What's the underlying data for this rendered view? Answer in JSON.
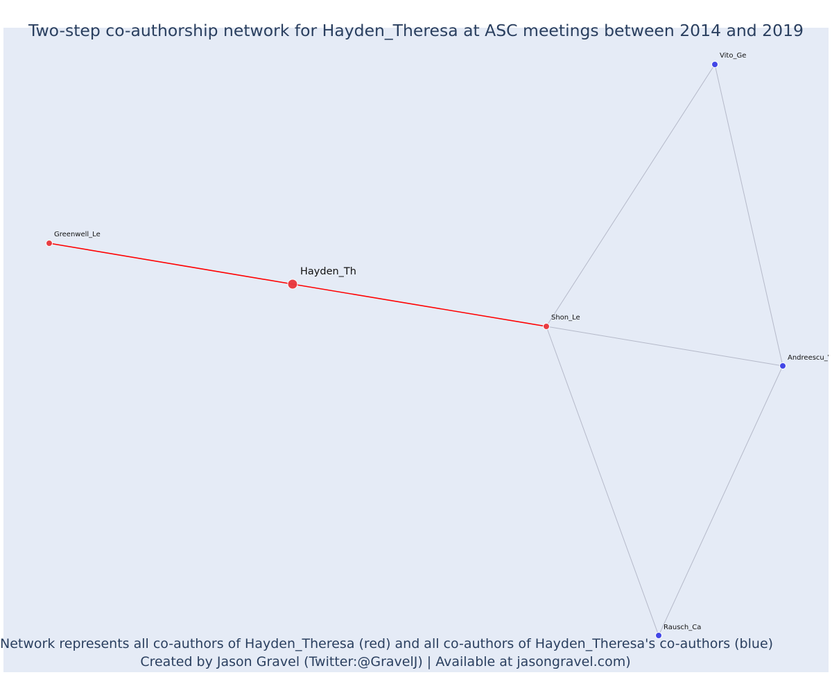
{
  "title": "Two-step co-authorship network for Hayden_Theresa at ASC meetings between 2014 and 2019",
  "footer": {
    "line1": "Network represents all co-authors of Hayden_Theresa (red) and all co-authors of Hayden_Theresa's co-authors (blue)",
    "line2": "Created by Jason Gravel (Twitter:@GravelJ) | Available at jasongravel.com)"
  },
  "colors": {
    "background": "#e5ebf6",
    "direct_coauthor": "#e8363b",
    "second_step_coauthor": "#3a3ee6",
    "direct_edge": "#ff0000",
    "second_step_edge": "#b5b9c9"
  },
  "chart_data": {
    "type": "network",
    "nodes": [
      {
        "id": "Hayden_Th",
        "label": "Hayden_Th",
        "group": "focal"
      },
      {
        "id": "Greenwell_Le",
        "label": "Greenwell_Le",
        "group": "coauthor"
      },
      {
        "id": "Shon_Le",
        "label": "Shon_Le",
        "group": "coauthor"
      },
      {
        "id": "Vito_Ge",
        "label": "Vito_Ge",
        "group": "second_step"
      },
      {
        "id": "Andreescu_V",
        "label": "Andreescu_V",
        "group": "second_step"
      },
      {
        "id": "Rausch_Ca",
        "label": "Rausch_Ca",
        "group": "second_step"
      }
    ],
    "edges": [
      {
        "source": "Greenwell_Le",
        "target": "Hayden_Th",
        "kind": "direct"
      },
      {
        "source": "Hayden_Th",
        "target": "Shon_Le",
        "kind": "direct"
      },
      {
        "source": "Shon_Le",
        "target": "Vito_Ge",
        "kind": "second_step"
      },
      {
        "source": "Shon_Le",
        "target": "Andreescu_V",
        "kind": "second_step"
      },
      {
        "source": "Shon_Le",
        "target": "Rausch_Ca",
        "kind": "second_step"
      },
      {
        "source": "Vito_Ge",
        "target": "Andreescu_V",
        "kind": "second_step"
      },
      {
        "source": "Andreescu_V",
        "target": "Rausch_Ca",
        "kind": "second_step"
      }
    ]
  }
}
